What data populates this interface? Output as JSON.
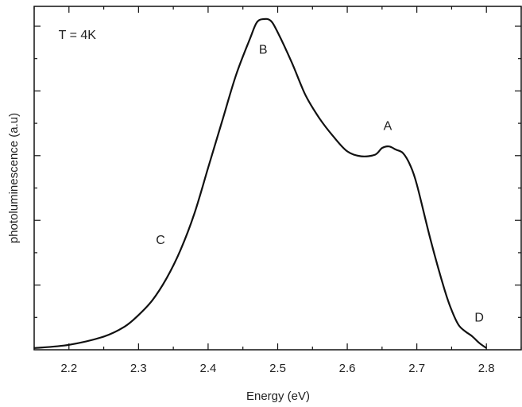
{
  "chart_data": {
    "type": "line",
    "title": "",
    "xlabel": "Energy (eV)",
    "ylabel": "photoluminescence (a.u)",
    "xlim": [
      2.15,
      2.85
    ],
    "ylim": [
      0,
      1.0
    ],
    "grid": false,
    "x_ticks": [
      2.2,
      2.3,
      2.4,
      2.5,
      2.6,
      2.7,
      2.8
    ],
    "x_tick_labels": [
      "2.2",
      "2.3",
      "2.4",
      "2.5",
      "2.6",
      "2.7",
      "2.8"
    ],
    "y_tick_labels_shown": false,
    "annotations": [
      {
        "text": "T = 4K",
        "x": 2.185,
        "y": 0.94
      },
      {
        "text": "A",
        "x": 2.652,
        "y": 0.665
      },
      {
        "text": "B",
        "x": 2.473,
        "y": 0.895
      },
      {
        "text": "C",
        "x": 2.325,
        "y": 0.32
      },
      {
        "text": "D",
        "x": 2.783,
        "y": 0.085
      }
    ],
    "series": [
      {
        "x": [
          2.15,
          2.2,
          2.25,
          2.28,
          2.3,
          2.32,
          2.34,
          2.36,
          2.38,
          2.4,
          2.42,
          2.44,
          2.46,
          2.47,
          2.48,
          2.49,
          2.5,
          2.52,
          2.54,
          2.56,
          2.58,
          2.6,
          2.62,
          2.64,
          2.65,
          2.66,
          2.67,
          2.68,
          2.69,
          2.7,
          2.72,
          2.74,
          2.75,
          2.76,
          2.77,
          2.78,
          2.79,
          2.8
        ],
        "y": [
          0.005,
          0.015,
          0.04,
          0.07,
          0.105,
          0.15,
          0.215,
          0.3,
          0.41,
          0.55,
          0.69,
          0.83,
          0.94,
          0.99,
          1.0,
          0.995,
          0.96,
          0.87,
          0.77,
          0.7,
          0.645,
          0.6,
          0.585,
          0.59,
          0.61,
          0.615,
          0.605,
          0.595,
          0.56,
          0.5,
          0.33,
          0.18,
          0.12,
          0.075,
          0.055,
          0.04,
          0.02,
          0.005
        ]
      }
    ]
  }
}
